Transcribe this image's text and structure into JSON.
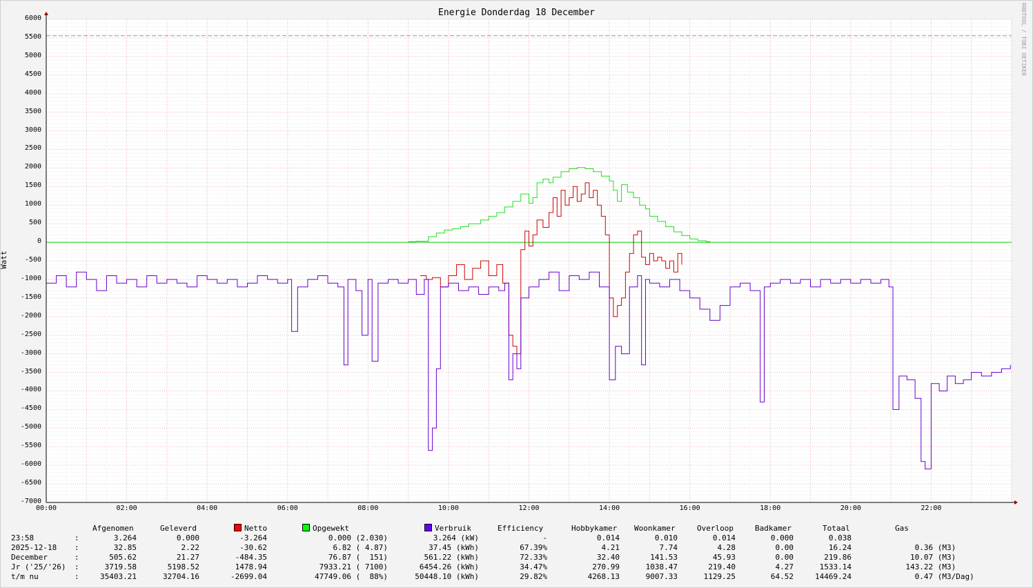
{
  "chart_data": {
    "type": "line",
    "title": "Energie Donderdag 18 December",
    "ylabel": "Watt",
    "watermark": "RRDTOOL / TOBI OETIKER",
    "ylim": [
      -7000,
      6000
    ],
    "xlim": [
      "00:00",
      "24:00"
    ],
    "y_ticks": [
      "6000",
      "5500",
      "5000",
      "4500",
      "4000",
      "3500",
      "3000",
      "2500",
      "2000",
      "1500",
      "1000",
      "500",
      "0",
      "-500",
      "-1000",
      "-1500",
      "-2000",
      "-2500",
      "-3000",
      "-3500",
      "-4000",
      "-4500",
      "-5000",
      "-5500",
      "-6000",
      "-6500",
      "-7000"
    ],
    "x_ticks": [
      "00:00",
      "02:00",
      "04:00",
      "06:00",
      "08:00",
      "10:00",
      "12:00",
      "14:00",
      "16:00",
      "18:00",
      "20:00",
      "22:00"
    ],
    "grid": true,
    "reference_line": {
      "y": 5560,
      "style": "dashed",
      "color": "#a09090"
    },
    "zero_line_color": "#00cc00",
    "series": [
      {
        "name": "Opgewekt",
        "color": "#22dd22",
        "points": [
          [
            9.0,
            20
          ],
          [
            9.2,
            30
          ],
          [
            9.5,
            150
          ],
          [
            9.7,
            250
          ],
          [
            9.9,
            330
          ],
          [
            10.1,
            370
          ],
          [
            10.3,
            420
          ],
          [
            10.5,
            500
          ],
          [
            10.8,
            600
          ],
          [
            11.0,
            700
          ],
          [
            11.2,
            800
          ],
          [
            11.4,
            950
          ],
          [
            11.6,
            1100
          ],
          [
            11.8,
            1300
          ],
          [
            12.0,
            1050
          ],
          [
            12.1,
            1200
          ],
          [
            12.2,
            1600
          ],
          [
            12.35,
            1700
          ],
          [
            12.5,
            1600
          ],
          [
            12.6,
            1750
          ],
          [
            12.8,
            1900
          ],
          [
            13.0,
            1980
          ],
          [
            13.2,
            2010
          ],
          [
            13.4,
            1980
          ],
          [
            13.6,
            1900
          ],
          [
            13.8,
            1780
          ],
          [
            14.0,
            1650
          ],
          [
            14.1,
            1400
          ],
          [
            14.2,
            1100
          ],
          [
            14.3,
            1550
          ],
          [
            14.45,
            1350
          ],
          [
            14.6,
            1200
          ],
          [
            14.75,
            1000
          ],
          [
            14.9,
            900
          ],
          [
            15.0,
            700
          ],
          [
            15.2,
            560
          ],
          [
            15.4,
            420
          ],
          [
            15.6,
            280
          ],
          [
            15.8,
            180
          ],
          [
            16.0,
            90
          ],
          [
            16.2,
            40
          ],
          [
            16.4,
            20
          ],
          [
            16.5,
            10
          ]
        ]
      },
      {
        "name": "Netto",
        "color": "#cc0000",
        "points": [
          [
            9.3,
            -900
          ],
          [
            9.45,
            -1000
          ],
          [
            9.6,
            -950
          ],
          [
            9.8,
            -1200
          ],
          [
            10.0,
            -900
          ],
          [
            10.2,
            -600
          ],
          [
            10.4,
            -1000
          ],
          [
            10.6,
            -700
          ],
          [
            10.8,
            -500
          ],
          [
            11.0,
            -900
          ],
          [
            11.2,
            -600
          ],
          [
            11.35,
            -1100
          ],
          [
            11.5,
            -2500
          ],
          [
            11.6,
            -2800
          ],
          [
            11.7,
            -3000
          ],
          [
            11.8,
            -200
          ],
          [
            11.9,
            300
          ],
          [
            12.0,
            -100
          ],
          [
            12.1,
            200
          ],
          [
            12.2,
            600
          ],
          [
            12.35,
            400
          ],
          [
            12.5,
            800
          ],
          [
            12.6,
            1200
          ],
          [
            12.7,
            700
          ],
          [
            12.8,
            1400
          ],
          [
            12.9,
            1000
          ],
          [
            13.0,
            1200
          ],
          [
            13.1,
            1500
          ],
          [
            13.2,
            1100
          ],
          [
            13.3,
            1300
          ],
          [
            13.4,
            1600
          ],
          [
            13.5,
            1200
          ],
          [
            13.6,
            1400
          ],
          [
            13.7,
            1000
          ],
          [
            13.8,
            700
          ],
          [
            13.9,
            200
          ],
          [
            14.0,
            -1500
          ],
          [
            14.1,
            -2000
          ],
          [
            14.2,
            -1700
          ],
          [
            14.3,
            -1500
          ],
          [
            14.4,
            -800
          ],
          [
            14.5,
            -300
          ],
          [
            14.6,
            200
          ],
          [
            14.7,
            300
          ],
          [
            14.8,
            -400
          ],
          [
            14.9,
            -600
          ],
          [
            15.0,
            -300
          ],
          [
            15.1,
            -500
          ],
          [
            15.2,
            -400
          ],
          [
            15.3,
            -500
          ],
          [
            15.4,
            -700
          ],
          [
            15.5,
            -500
          ],
          [
            15.6,
            -800
          ],
          [
            15.7,
            -300
          ],
          [
            15.8,
            -600
          ]
        ]
      },
      {
        "name": "Verbruik",
        "color": "#6600cc",
        "points": [
          [
            0.0,
            -1100
          ],
          [
            0.25,
            -900
          ],
          [
            0.5,
            -1200
          ],
          [
            0.75,
            -800
          ],
          [
            1.0,
            -1000
          ],
          [
            1.25,
            -1300
          ],
          [
            1.5,
            -900
          ],
          [
            1.75,
            -1100
          ],
          [
            2.0,
            -1000
          ],
          [
            2.25,
            -1200
          ],
          [
            2.5,
            -900
          ],
          [
            2.75,
            -1100
          ],
          [
            3.0,
            -1000
          ],
          [
            3.25,
            -1100
          ],
          [
            3.5,
            -1200
          ],
          [
            3.75,
            -900
          ],
          [
            4.0,
            -1000
          ],
          [
            4.25,
            -1100
          ],
          [
            4.5,
            -1000
          ],
          [
            4.75,
            -1200
          ],
          [
            5.0,
            -1100
          ],
          [
            5.25,
            -900
          ],
          [
            5.5,
            -1000
          ],
          [
            5.75,
            -1100
          ],
          [
            6.0,
            -1000
          ],
          [
            6.1,
            -2400
          ],
          [
            6.25,
            -1200
          ],
          [
            6.5,
            -1000
          ],
          [
            6.75,
            -900
          ],
          [
            7.0,
            -1100
          ],
          [
            7.25,
            -1200
          ],
          [
            7.4,
            -3300
          ],
          [
            7.5,
            -1000
          ],
          [
            7.7,
            -1300
          ],
          [
            7.85,
            -2500
          ],
          [
            8.0,
            -1000
          ],
          [
            8.1,
            -3200
          ],
          [
            8.25,
            -1100
          ],
          [
            8.5,
            -1000
          ],
          [
            8.75,
            -1100
          ],
          [
            9.0,
            -1000
          ],
          [
            9.2,
            -1400
          ],
          [
            9.4,
            -1000
          ],
          [
            9.5,
            -5600
          ],
          [
            9.6,
            -5000
          ],
          [
            9.7,
            -3400
          ],
          [
            9.8,
            -1200
          ],
          [
            10.0,
            -1100
          ],
          [
            10.25,
            -1300
          ],
          [
            10.5,
            -1200
          ],
          [
            10.75,
            -1400
          ],
          [
            11.0,
            -1200
          ],
          [
            11.25,
            -1300
          ],
          [
            11.4,
            -1100
          ],
          [
            11.5,
            -3700
          ],
          [
            11.6,
            -3000
          ],
          [
            11.7,
            -3400
          ],
          [
            11.8,
            -1500
          ],
          [
            12.0,
            -1200
          ],
          [
            12.25,
            -1000
          ],
          [
            12.5,
            -800
          ],
          [
            12.75,
            -1300
          ],
          [
            13.0,
            -900
          ],
          [
            13.25,
            -1000
          ],
          [
            13.5,
            -800
          ],
          [
            13.75,
            -1200
          ],
          [
            14.0,
            -3700
          ],
          [
            14.15,
            -2800
          ],
          [
            14.3,
            -3000
          ],
          [
            14.5,
            -1200
          ],
          [
            14.7,
            -900
          ],
          [
            14.8,
            -3300
          ],
          [
            14.9,
            -1000
          ],
          [
            15.0,
            -1100
          ],
          [
            15.25,
            -1200
          ],
          [
            15.5,
            -1000
          ],
          [
            15.75,
            -1300
          ],
          [
            16.0,
            -1500
          ],
          [
            16.25,
            -1800
          ],
          [
            16.5,
            -2100
          ],
          [
            16.75,
            -1700
          ],
          [
            17.0,
            -1200
          ],
          [
            17.25,
            -1100
          ],
          [
            17.5,
            -1300
          ],
          [
            17.75,
            -4300
          ],
          [
            17.85,
            -1200
          ],
          [
            18.0,
            -1100
          ],
          [
            18.25,
            -1000
          ],
          [
            18.5,
            -1100
          ],
          [
            18.75,
            -1000
          ],
          [
            19.0,
            -1200
          ],
          [
            19.25,
            -1000
          ],
          [
            19.5,
            -1100
          ],
          [
            19.75,
            -1000
          ],
          [
            20.0,
            -1100
          ],
          [
            20.25,
            -1000
          ],
          [
            20.5,
            -1100
          ],
          [
            20.75,
            -1000
          ],
          [
            20.95,
            -1200
          ],
          [
            21.05,
            -4500
          ],
          [
            21.2,
            -3600
          ],
          [
            21.4,
            -3700
          ],
          [
            21.6,
            -4200
          ],
          [
            21.75,
            -5900
          ],
          [
            21.85,
            -6100
          ],
          [
            22.0,
            -3800
          ],
          [
            22.2,
            -4000
          ],
          [
            22.4,
            -3600
          ],
          [
            22.6,
            -3800
          ],
          [
            22.8,
            -3700
          ],
          [
            23.0,
            -3500
          ],
          [
            23.25,
            -3600
          ],
          [
            23.5,
            -3500
          ],
          [
            23.75,
            -3400
          ],
          [
            23.97,
            -3300
          ]
        ]
      }
    ]
  },
  "legend": {
    "headers": [
      "Afgenomen",
      "Geleverd",
      "Netto",
      "Opgewekt",
      "Verbruik",
      "Efficiency",
      "Hobbykamer",
      "Woonkamer",
      "Overloop",
      "Badkamer",
      "Totaal",
      "Gas"
    ],
    "swatches": {
      "Netto": "#ff0000",
      "Opgewekt": "#00ff00",
      "Verbruik": "#6600ff"
    },
    "rows": [
      {
        "label": "23:58",
        "colon": ":",
        "afgenomen": "3.264",
        "geleverd": "0.000",
        "netto": "-3.264",
        "opgewekt": "0.000 (2.030)",
        "verbruik": "3.264 (kW)",
        "efficiency": "-",
        "hobbykamer": "0.014",
        "woonkamer": "0.010",
        "overloop": "0.014",
        "badkamer": "0.000",
        "totaal": "0.038",
        "gas": ""
      },
      {
        "label": "2025-12-18",
        "colon": ":",
        "afgenomen": "32.85",
        "geleverd": "2.22",
        "netto": "-30.62",
        "opgewekt": "6.82 ( 4.87)",
        "verbruik": "37.45 (kWh)",
        "efficiency": "67.39%",
        "hobbykamer": "4.21",
        "woonkamer": "7.74",
        "overloop": "4.28",
        "badkamer": "0.00",
        "totaal": "16.24",
        "gas": "0.36 (M3)"
      },
      {
        "label": "December",
        "colon": ":",
        "afgenomen": "505.62",
        "geleverd": "21.27",
        "netto": "-484.35",
        "opgewekt": "76.87 (  151)",
        "verbruik": "561.22 (kWh)",
        "efficiency": "72.33%",
        "hobbykamer": "32.40",
        "woonkamer": "141.53",
        "overloop": "45.93",
        "badkamer": "0.00",
        "totaal": "219.86",
        "gas": "10.07 (M3)"
      },
      {
        "label": "Jr ('25/'26)",
        "colon": ":",
        "afgenomen": "3719.58",
        "geleverd": "5198.52",
        "netto": "1478.94",
        "opgewekt": "7933.21 ( 7100)",
        "verbruik": "6454.26 (kWh)",
        "efficiency": "34.47%",
        "hobbykamer": "270.99",
        "woonkamer": "1038.47",
        "overloop": "219.40",
        "badkamer": "4.27",
        "totaal": "1533.14",
        "gas": "143.22 (M3)"
      },
      {
        "label": "t/m nu",
        "colon": ":",
        "afgenomen": "35403.21",
        "geleverd": "32704.16",
        "netto": "-2699.04",
        "opgewekt": "47749.06 (  88%)",
        "verbruik": "50448.10 (kWh)",
        "efficiency": "29.82%",
        "hobbykamer": "4268.13",
        "woonkamer": "9007.33",
        "overloop": "1129.25",
        "badkamer": "64.52",
        "totaal": "14469.24",
        "gas": "0.47 (M3/Dag)"
      }
    ]
  }
}
